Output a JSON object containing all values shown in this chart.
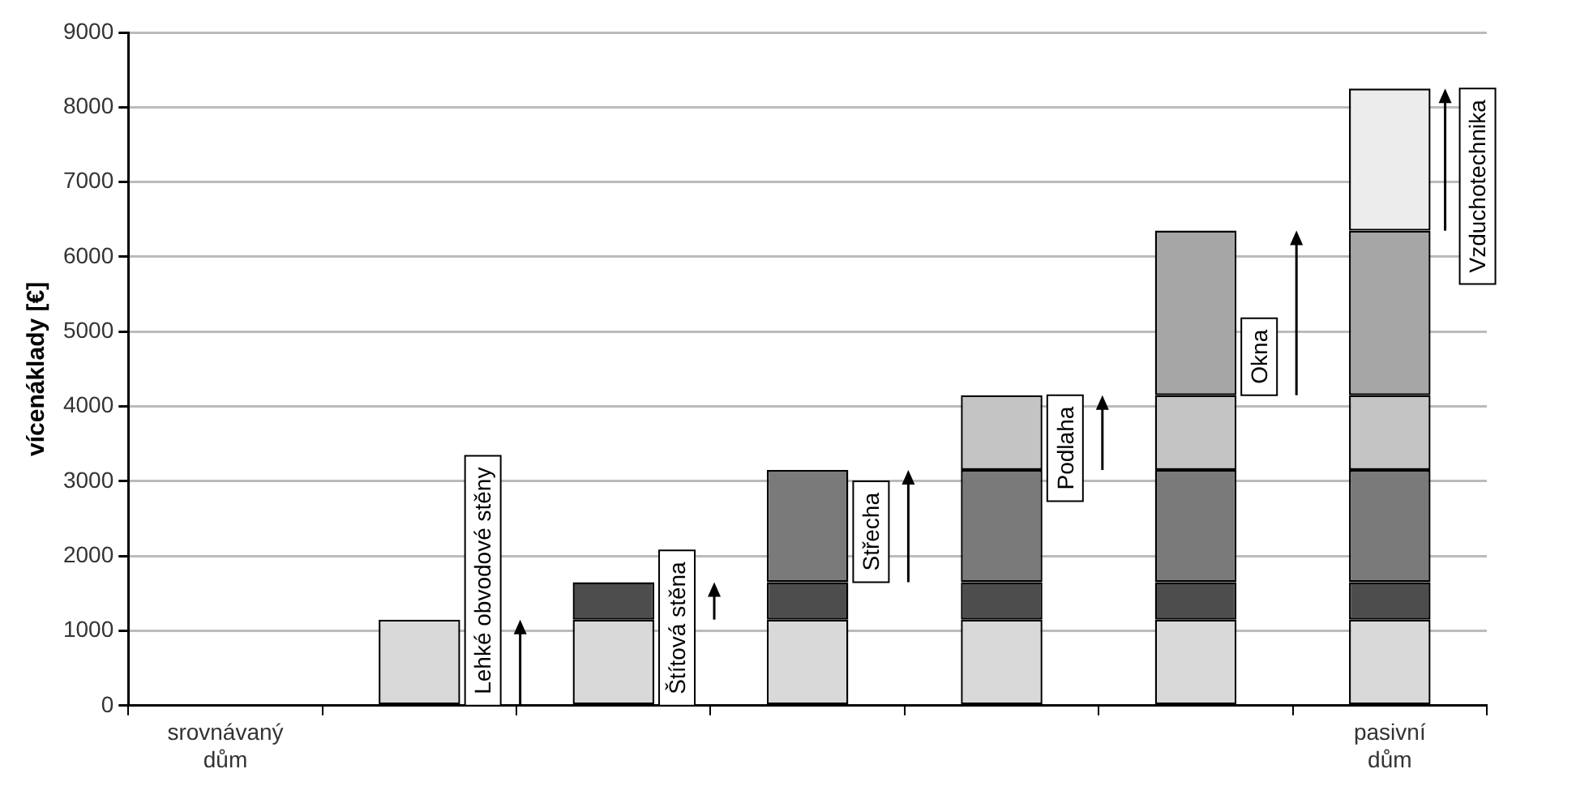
{
  "chart_data": {
    "type": "bar",
    "stacked": true,
    "ylabel": "vícenáklady [€]",
    "categories": [
      "srovnávaný dům",
      null,
      null,
      null,
      null,
      null,
      "pasivní dům"
    ],
    "series": [
      {
        "name": "Lehké obvodové stěny",
        "color": "#d9d9d9",
        "values": [
          0,
          1150,
          1150,
          1150,
          1150,
          1150,
          1150
        ]
      },
      {
        "name": "Štítová stěna",
        "color": "#4d4d4d",
        "values": [
          0,
          0,
          500,
          500,
          500,
          500,
          500
        ]
      },
      {
        "name": "Střecha",
        "color": "#7a7a7a",
        "values": [
          0,
          0,
          0,
          1500,
          1500,
          1500,
          1500
        ]
      },
      {
        "name": "Podlaha",
        "color": "#c4c4c4",
        "values": [
          0,
          0,
          0,
          0,
          1000,
          1000,
          1000
        ]
      },
      {
        "name": "Okna",
        "color": "#a6a6a6",
        "values": [
          0,
          0,
          0,
          0,
          0,
          2200,
          2200
        ]
      },
      {
        "name": "Vzduchotechnika",
        "color": "#ececec",
        "values": [
          0,
          0,
          0,
          0,
          0,
          0,
          1900
        ]
      }
    ],
    "ylim": [
      0,
      9000
    ],
    "yticks": [
      0,
      1000,
      2000,
      3000,
      4000,
      5000,
      6000,
      7000,
      8000,
      9000
    ],
    "grid": "y",
    "legend": false
  }
}
